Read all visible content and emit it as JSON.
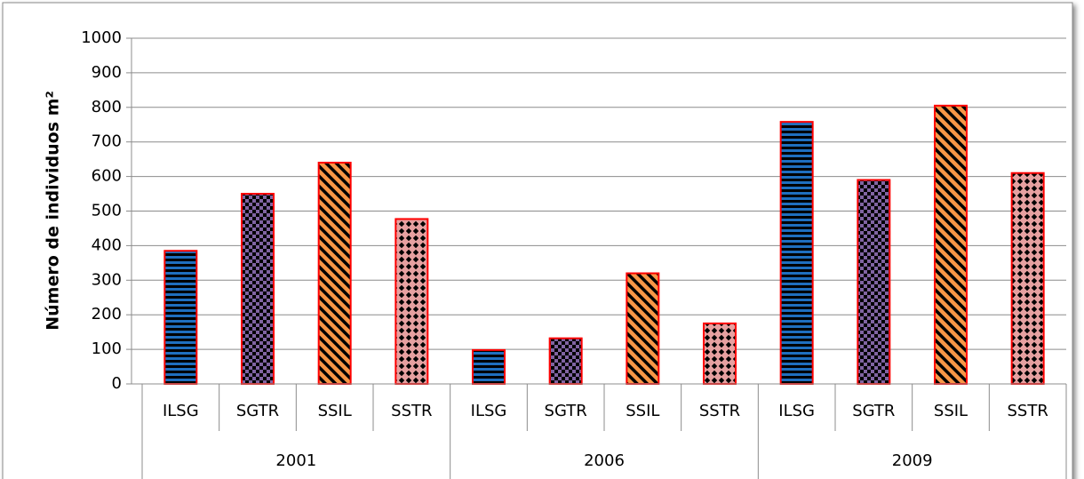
{
  "chart_data": {
    "type": "bar",
    "ylabel": "Número de individuos m²",
    "categories": [
      "2001",
      "2006",
      "2009"
    ],
    "series": [
      {
        "name": "ILSG",
        "color": "#1f6fbf",
        "pattern": "horizontal",
        "values": [
          385,
          98,
          758
        ]
      },
      {
        "name": "SGTR",
        "color": "#8064a2",
        "pattern": "checker",
        "values": [
          550,
          132,
          590
        ]
      },
      {
        "name": "SSIL",
        "color": "#f79646",
        "pattern": "diagonal",
        "values": [
          640,
          320,
          805
        ]
      },
      {
        "name": "SSTR",
        "color": "#e6a0a0",
        "pattern": "diamond",
        "values": [
          477,
          175,
          610
        ]
      }
    ],
    "edgecolor": "#ff0000",
    "ylim": [
      0,
      1000
    ],
    "yticks": [
      0,
      100,
      200,
      300,
      400,
      500,
      600,
      700,
      800,
      900,
      1000
    ],
    "grid": true
  }
}
